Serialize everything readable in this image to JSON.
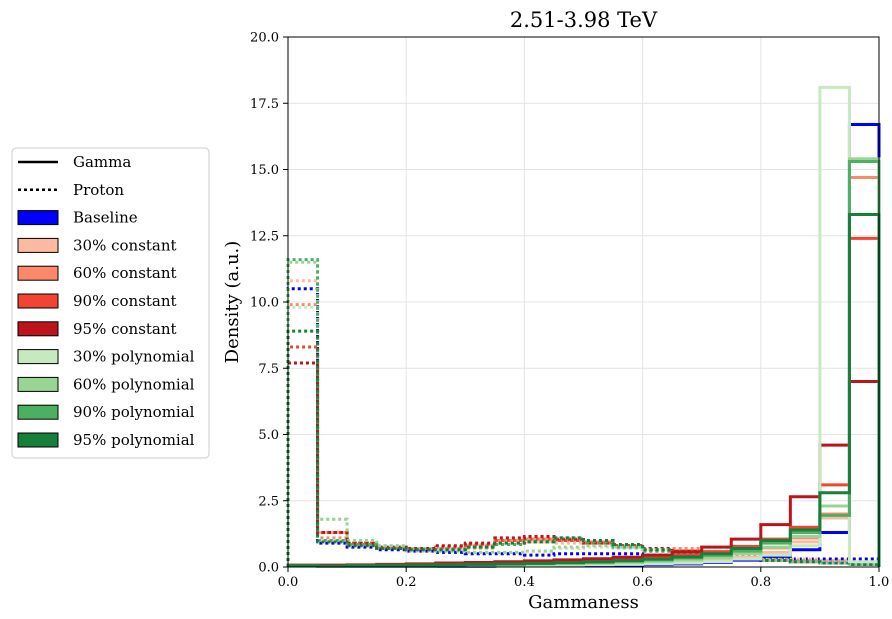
{
  "chart_data": {
    "type": "histogram-step",
    "title": "2.51-3.98 TeV",
    "xlabel": "Gammaness",
    "ylabel": "Density (a.u.)",
    "xlim": [
      0.0,
      1.0
    ],
    "ylim": [
      0.0,
      20.0
    ],
    "x_ticks": [
      "0.0",
      "0.2",
      "0.4",
      "0.6",
      "0.8",
      "1.0"
    ],
    "y_ticks": [
      "0.0",
      "2.5",
      "5.0",
      "7.5",
      "10.0",
      "12.5",
      "15.0",
      "17.5",
      "20.0"
    ],
    "grid": true,
    "legend_position": "left, outside plot",
    "bin_edges": [
      0.0,
      0.05,
      0.1,
      0.15,
      0.2,
      0.25,
      0.3,
      0.35,
      0.4,
      0.45,
      0.5,
      0.55,
      0.6,
      0.65,
      0.7,
      0.75,
      0.8,
      0.85,
      0.9,
      0.95,
      1.0
    ],
    "legend": [
      {
        "label": "Gamma",
        "kind": "line-solid",
        "color": "#000000"
      },
      {
        "label": "Proton",
        "kind": "line-dotted",
        "color": "#000000"
      },
      {
        "label": "Baseline",
        "kind": "patch",
        "color": "#0000ff"
      },
      {
        "label": "30% constant",
        "kind": "patch",
        "color": "#fcbba1"
      },
      {
        "label": "60% constant",
        "kind": "patch",
        "color": "#fc8a6a"
      },
      {
        "label": "90% constant",
        "kind": "patch",
        "color": "#f14432"
      },
      {
        "label": "95% constant",
        "kind": "patch",
        "color": "#bc141a"
      },
      {
        "label": "30% polynomial",
        "kind": "patch",
        "color": "#c7e9c0"
      },
      {
        "label": "60% polynomial",
        "kind": "patch",
        "color": "#98d594"
      },
      {
        "label": "90% polynomial",
        "kind": "patch",
        "color": "#4bb062"
      },
      {
        "label": "95% polynomial",
        "kind": "patch",
        "color": "#157f3b"
      }
    ],
    "series": [
      {
        "name": "Baseline",
        "particle": "Proton",
        "color": "#0000ff",
        "values": [
          10.5,
          0.9,
          0.75,
          0.65,
          0.6,
          0.55,
          0.5,
          0.5,
          0.45,
          0.5,
          0.5,
          0.5,
          0.45,
          0.4,
          0.35,
          0.3,
          0.3,
          0.3,
          0.3,
          0.3
        ]
      },
      {
        "name": "30% constant",
        "particle": "Proton",
        "color": "#fcbba1",
        "values": [
          10.8,
          1.0,
          0.8,
          0.7,
          0.6,
          0.65,
          0.7,
          0.9,
          0.95,
          0.9,
          0.9,
          0.75,
          0.65,
          0.55,
          0.45,
          0.35,
          0.3,
          0.3,
          0.25,
          0.15
        ]
      },
      {
        "name": "60% constant",
        "particle": "Proton",
        "color": "#fc8a6a",
        "values": [
          9.9,
          1.1,
          0.85,
          0.75,
          0.65,
          0.7,
          0.8,
          1.0,
          1.05,
          1.0,
          0.95,
          0.8,
          0.7,
          0.7,
          0.75,
          0.45,
          0.3,
          0.25,
          0.2,
          0.1
        ]
      },
      {
        "name": "90% constant",
        "particle": "Proton",
        "color": "#f14432",
        "values": [
          8.3,
          1.3,
          0.9,
          0.75,
          0.7,
          0.75,
          0.85,
          1.0,
          1.05,
          1.0,
          0.9,
          0.75,
          0.6,
          0.6,
          0.5,
          0.3,
          0.25,
          0.2,
          0.15,
          0.1
        ]
      },
      {
        "name": "95% constant",
        "particle": "Proton",
        "color": "#bc141a",
        "values": [
          7.7,
          1.3,
          0.9,
          0.75,
          0.7,
          0.8,
          0.9,
          1.1,
          1.15,
          1.05,
          0.9,
          0.8,
          0.7,
          0.6,
          0.5,
          0.35,
          0.25,
          0.2,
          0.15,
          0.1
        ]
      },
      {
        "name": "30% polynomial",
        "particle": "Proton",
        "color": "#c7e9c0",
        "values": [
          9.8,
          1.8,
          1.0,
          0.8,
          0.7,
          0.6,
          0.55,
          0.55,
          0.6,
          0.7,
          0.75,
          0.7,
          0.6,
          0.5,
          0.4,
          0.3,
          0.25,
          0.2,
          0.15,
          0.1
        ]
      },
      {
        "name": "60% polynomial",
        "particle": "Proton",
        "color": "#98d594",
        "values": [
          11.5,
          1.8,
          1.0,
          0.8,
          0.7,
          0.6,
          0.55,
          0.55,
          0.6,
          0.75,
          0.8,
          0.75,
          0.65,
          0.55,
          0.45,
          0.35,
          0.25,
          0.2,
          0.15,
          0.1
        ]
      },
      {
        "name": "90% polynomial",
        "particle": "Proton",
        "color": "#4bb062",
        "values": [
          11.6,
          1.0,
          0.85,
          0.7,
          0.65,
          0.65,
          0.75,
          0.85,
          0.95,
          1.1,
          0.95,
          0.75,
          0.6,
          0.55,
          0.45,
          0.35,
          0.25,
          0.2,
          0.15,
          0.1
        ]
      },
      {
        "name": "95% polynomial",
        "particle": "Proton",
        "color": "#157f3b",
        "values": [
          8.9,
          0.95,
          0.8,
          0.7,
          0.65,
          0.65,
          0.75,
          0.9,
          0.95,
          1.1,
          1.0,
          0.85,
          0.65,
          0.55,
          0.45,
          0.35,
          0.25,
          0.2,
          0.15,
          0.1
        ]
      },
      {
        "name": "Baseline",
        "particle": "Gamma",
        "color": "#0000ff",
        "values": [
          0.05,
          0.03,
          0.03,
          0.03,
          0.03,
          0.03,
          0.03,
          0.04,
          0.04,
          0.05,
          0.06,
          0.07,
          0.09,
          0.12,
          0.17,
          0.26,
          0.4,
          0.65,
          1.3,
          16.7
        ]
      },
      {
        "name": "30% constant",
        "particle": "Gamma",
        "color": "#fcbba1",
        "values": [
          0.05,
          0.04,
          0.04,
          0.04,
          0.05,
          0.05,
          0.06,
          0.07,
          0.08,
          0.09,
          0.11,
          0.13,
          0.16,
          0.2,
          0.26,
          0.36,
          0.55,
          0.95,
          1.85,
          15.4
        ]
      },
      {
        "name": "60% constant",
        "particle": "Gamma",
        "color": "#fc8a6a",
        "values": [
          0.05,
          0.04,
          0.05,
          0.05,
          0.06,
          0.07,
          0.08,
          0.09,
          0.1,
          0.12,
          0.14,
          0.17,
          0.21,
          0.27,
          0.36,
          0.5,
          0.72,
          1.1,
          2.0,
          14.7
        ]
      },
      {
        "name": "90% constant",
        "particle": "Gamma",
        "color": "#f14432",
        "values": [
          0.06,
          0.05,
          0.06,
          0.07,
          0.08,
          0.1,
          0.12,
          0.14,
          0.17,
          0.2,
          0.24,
          0.29,
          0.36,
          0.45,
          0.58,
          0.78,
          1.05,
          1.5,
          3.1,
          12.4
        ]
      },
      {
        "name": "95% constant",
        "particle": "Gamma",
        "color": "#bc141a",
        "values": [
          0.07,
          0.07,
          0.08,
          0.1,
          0.12,
          0.15,
          0.17,
          0.2,
          0.23,
          0.27,
          0.31,
          0.37,
          0.45,
          0.57,
          0.75,
          1.05,
          1.6,
          2.65,
          4.6,
          7.0
        ]
      },
      {
        "name": "30% polynomial",
        "particle": "Gamma",
        "color": "#c7e9c0",
        "values": [
          0.05,
          0.03,
          0.03,
          0.03,
          0.03,
          0.04,
          0.05,
          0.06,
          0.07,
          0.08,
          0.09,
          0.1,
          0.12,
          0.15,
          0.2,
          0.3,
          0.45,
          0.8,
          18.1,
          0.2
        ]
      },
      {
        "name": "60% polynomial",
        "particle": "Gamma",
        "color": "#98d594",
        "values": [
          0.05,
          0.03,
          0.04,
          0.04,
          0.05,
          0.06,
          0.07,
          0.08,
          0.1,
          0.12,
          0.14,
          0.17,
          0.21,
          0.27,
          0.35,
          0.5,
          0.75,
          1.15,
          2.3,
          15.4
        ]
      },
      {
        "name": "90% polynomial",
        "particle": "Gamma",
        "color": "#4bb062",
        "values": [
          0.05,
          0.04,
          0.05,
          0.06,
          0.07,
          0.08,
          0.09,
          0.11,
          0.13,
          0.15,
          0.18,
          0.22,
          0.27,
          0.34,
          0.44,
          0.6,
          0.9,
          1.3,
          1.95,
          15.3
        ]
      },
      {
        "name": "95% polynomial",
        "particle": "Gamma",
        "color": "#157f3b",
        "values": [
          0.05,
          0.04,
          0.05,
          0.06,
          0.07,
          0.08,
          0.1,
          0.12,
          0.14,
          0.17,
          0.2,
          0.24,
          0.3,
          0.38,
          0.5,
          0.7,
          1.0,
          1.4,
          2.8,
          13.3
        ]
      }
    ]
  }
}
